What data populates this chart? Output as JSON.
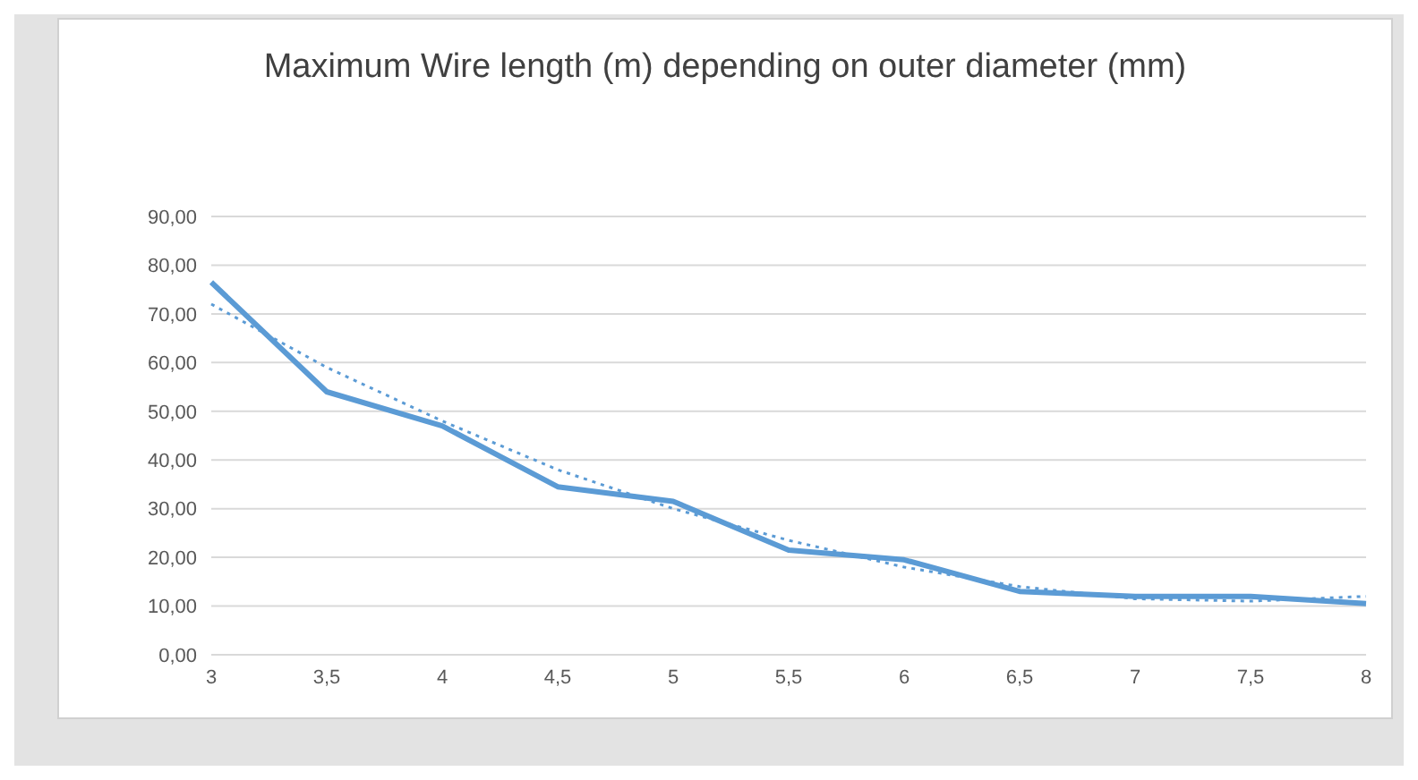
{
  "chart_data": {
    "type": "line",
    "title": "Maximum Wire length (m) depending on outer diameter (mm)",
    "categories": [
      "3",
      "3,5",
      "4",
      "4,5",
      "5",
      "5,5",
      "6",
      "6,5",
      "7",
      "7,5",
      "8"
    ],
    "series": [
      {
        "color": "#5b9bd5",
        "values": [
          76.5,
          54,
          47,
          34.5,
          31.5,
          21.5,
          19.5,
          13,
          12,
          12,
          10.5
        ]
      },
      {
        "color": "#5b9bd5",
        "line_style": "dotted",
        "values": [
          72,
          59,
          48,
          38,
          30,
          23.5,
          18,
          14,
          11.5,
          11,
          12
        ]
      }
    ],
    "ylim": [
      0,
      90
    ],
    "yticks": [
      {
        "value": 0,
        "label": "0,00"
      },
      {
        "value": 10,
        "label": "10,00"
      },
      {
        "value": 20,
        "label": "20,00"
      },
      {
        "value": 30,
        "label": "30,00"
      },
      {
        "value": 40,
        "label": "40,00"
      },
      {
        "value": 50,
        "label": "50,00"
      },
      {
        "value": 60,
        "label": "60,00"
      },
      {
        "value": 70,
        "label": "70,00"
      },
      {
        "value": 80,
        "label": "80,00"
      },
      {
        "value": 90,
        "label": "90,00"
      }
    ],
    "grid": "y",
    "legend": false,
    "marker": "none",
    "line_style": "solid"
  }
}
